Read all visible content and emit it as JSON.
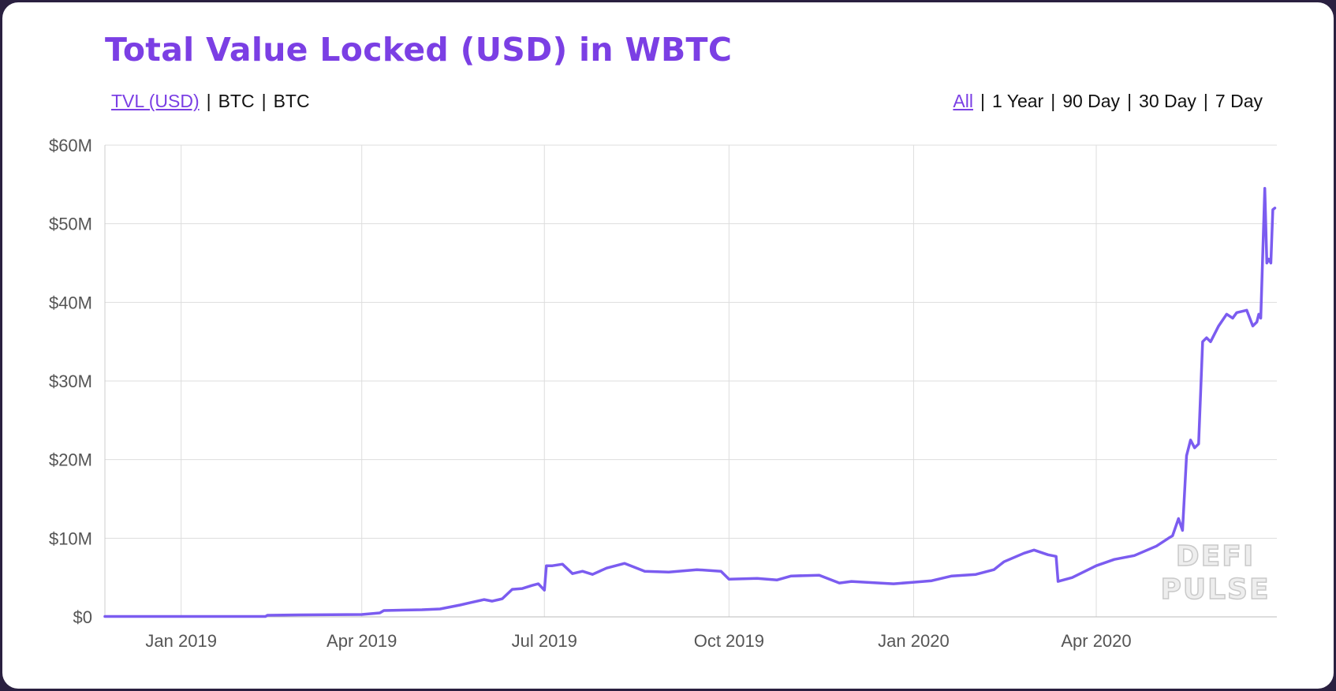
{
  "metric_tabs": [
    {
      "label": "TVL (USD)",
      "active": true
    },
    {
      "label": "BTC",
      "active": false
    },
    {
      "label": "BTC",
      "active": false
    }
  ],
  "range_tabs": [
    {
      "label": "All",
      "active": true
    },
    {
      "label": "1 Year",
      "active": false
    },
    {
      "label": "90 Day",
      "active": false
    },
    {
      "label": "30 Day",
      "active": false
    },
    {
      "label": "7 Day",
      "active": false
    }
  ],
  "watermark": {
    "line1": "DEFI",
    "line2": "PULSE"
  },
  "colors": {
    "accent": "#7b3fe4",
    "line": "#7b5cf0",
    "grid": "#dddddd"
  },
  "chart_data": {
    "type": "line",
    "title": "Total Value Locked (USD) in WBTC",
    "xlabel": "",
    "ylabel": "",
    "ylim": [
      0,
      60000000
    ],
    "xlim": [
      "2018-11-24",
      "2020-06-30"
    ],
    "y_ticks": [
      0,
      10000000,
      20000000,
      30000000,
      40000000,
      50000000,
      60000000
    ],
    "y_tick_labels": [
      "$0",
      "$10M",
      "$20M",
      "$30M",
      "$40M",
      "$50M",
      "$60M"
    ],
    "x_ticks": [
      "2019-01-01",
      "2019-04-01",
      "2019-07-01",
      "2019-10-01",
      "2020-01-01",
      "2020-04-01"
    ],
    "x_tick_labels": [
      "Jan 2019",
      "Apr 2019",
      "Jul 2019",
      "Oct 2019",
      "Jan 2020",
      "Apr 2020"
    ],
    "grid": true,
    "legend": "none",
    "series": [
      {
        "x": [
          "2018-11-24",
          "2019-01-01",
          "2019-02-12",
          "2019-02-13",
          "2019-03-01",
          "2019-04-01",
          "2019-04-10",
          "2019-04-12",
          "2019-05-01",
          "2019-05-10",
          "2019-05-20",
          "2019-05-25",
          "2019-06-01",
          "2019-06-05",
          "2019-06-10",
          "2019-06-15",
          "2019-06-20",
          "2019-06-25",
          "2019-06-28",
          "2019-07-01",
          "2019-07-02",
          "2019-07-05",
          "2019-07-10",
          "2019-07-15",
          "2019-07-20",
          "2019-07-25",
          "2019-08-01",
          "2019-08-10",
          "2019-08-15",
          "2019-08-20",
          "2019-09-01",
          "2019-09-15",
          "2019-09-27",
          "2019-10-01",
          "2019-10-15",
          "2019-10-25",
          "2019-11-01",
          "2019-11-15",
          "2019-11-25",
          "2019-12-01",
          "2019-12-15",
          "2019-12-22",
          "2020-01-01",
          "2020-01-10",
          "2020-01-20",
          "2020-02-01",
          "2020-02-10",
          "2020-02-15",
          "2020-02-25",
          "2020-03-01",
          "2020-03-08",
          "2020-03-12",
          "2020-03-13",
          "2020-03-20",
          "2020-04-01",
          "2020-04-10",
          "2020-04-20",
          "2020-05-01",
          "2020-05-07",
          "2020-05-09",
          "2020-05-12",
          "2020-05-14",
          "2020-05-16",
          "2020-05-18",
          "2020-05-20",
          "2020-05-22",
          "2020-05-24",
          "2020-05-26",
          "2020-05-28",
          "2020-06-01",
          "2020-06-05",
          "2020-06-08",
          "2020-06-10",
          "2020-06-15",
          "2020-06-18",
          "2020-06-20",
          "2020-06-21",
          "2020-06-22",
          "2020-06-24",
          "2020-06-25",
          "2020-06-26",
          "2020-06-27",
          "2020-06-28",
          "2020-06-29"
        ],
        "y": [
          50000,
          50000,
          50000,
          200000,
          250000,
          300000,
          500000,
          800000,
          900000,
          1000000,
          1500000,
          1800000,
          2200000,
          2000000,
          2300000,
          3500000,
          3600000,
          4000000,
          4200000,
          3400000,
          6500000,
          6500000,
          6700000,
          5500000,
          5800000,
          5400000,
          6200000,
          6800000,
          6300000,
          5800000,
          5700000,
          6000000,
          5800000,
          4800000,
          4900000,
          4700000,
          5200000,
          5300000,
          4300000,
          4500000,
          4300000,
          4200000,
          4400000,
          4600000,
          5200000,
          5400000,
          6000000,
          7000000,
          8100000,
          8500000,
          7900000,
          7700000,
          4500000,
          5000000,
          6500000,
          7300000,
          7800000,
          9000000,
          10000000,
          10300000,
          12500000,
          11000000,
          20500000,
          22500000,
          21500000,
          22000000,
          35000000,
          35500000,
          35000000,
          37000000,
          38500000,
          38000000,
          38700000,
          39000000,
          37000000,
          37500000,
          38500000,
          38000000,
          54500000,
          45000000,
          45500000,
          45000000,
          51800000,
          52000000
        ]
      }
    ]
  }
}
